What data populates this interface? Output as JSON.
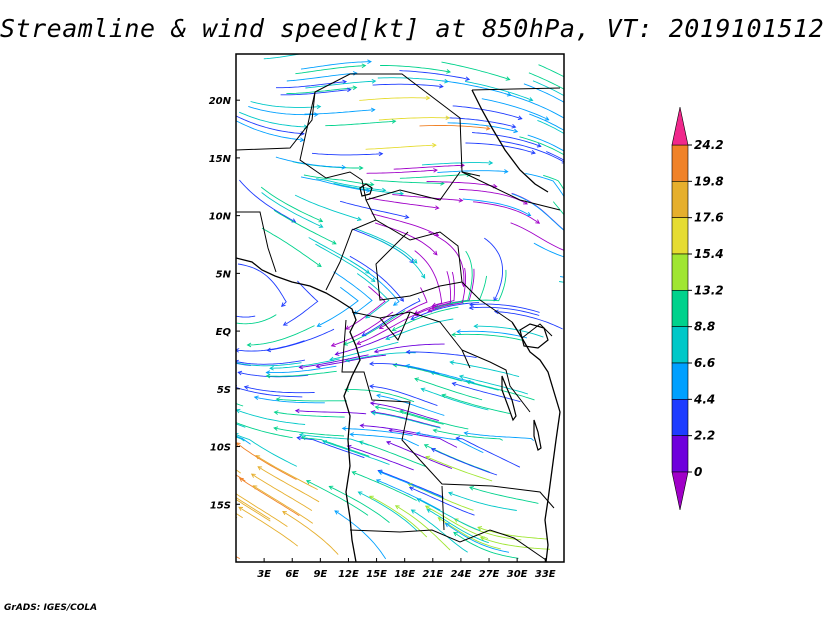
{
  "title": "Streamline & wind speed[kt] at 850hPa, VT: 2019101512",
  "credit": "GrADS: IGES/COLA",
  "map": {
    "lon_range": [
      0,
      35
    ],
    "lat_range": [
      -20,
      24
    ],
    "lon_ticks": [
      {
        "value": 3,
        "label": "3E"
      },
      {
        "value": 6,
        "label": "6E"
      },
      {
        "value": 9,
        "label": "9E"
      },
      {
        "value": 12,
        "label": "12E"
      },
      {
        "value": 15,
        "label": "15E"
      },
      {
        "value": 18,
        "label": "18E"
      },
      {
        "value": 21,
        "label": "21E"
      },
      {
        "value": 24,
        "label": "24E"
      },
      {
        "value": 27,
        "label": "27E"
      },
      {
        "value": 30,
        "label": "30E"
      },
      {
        "value": 33,
        "label": "33E"
      }
    ],
    "lat_ticks": [
      {
        "value": 20,
        "label": "20N"
      },
      {
        "value": 15,
        "label": "15N"
      },
      {
        "value": 10,
        "label": "10N"
      },
      {
        "value": 5,
        "label": "5N"
      },
      {
        "value": 0,
        "label": "EQ"
      },
      {
        "value": -5,
        "label": "5S"
      },
      {
        "value": -10,
        "label": "10S"
      },
      {
        "value": -15,
        "label": "15S"
      }
    ]
  },
  "colorbar": {
    "unit": "kt",
    "levels": [
      "0",
      "2.2",
      "4.4",
      "6.6",
      "8.8",
      "13.2",
      "15.4",
      "17.6",
      "19.8",
      "24.2"
    ],
    "colors": [
      "#a000c8",
      "#6e00dc",
      "#1e3cff",
      "#00a0ff",
      "#00c8c8",
      "#00d28c",
      "#a0e632",
      "#e6dc32",
      "#e6af2d",
      "#f08228",
      "#f0288c"
    ]
  }
}
